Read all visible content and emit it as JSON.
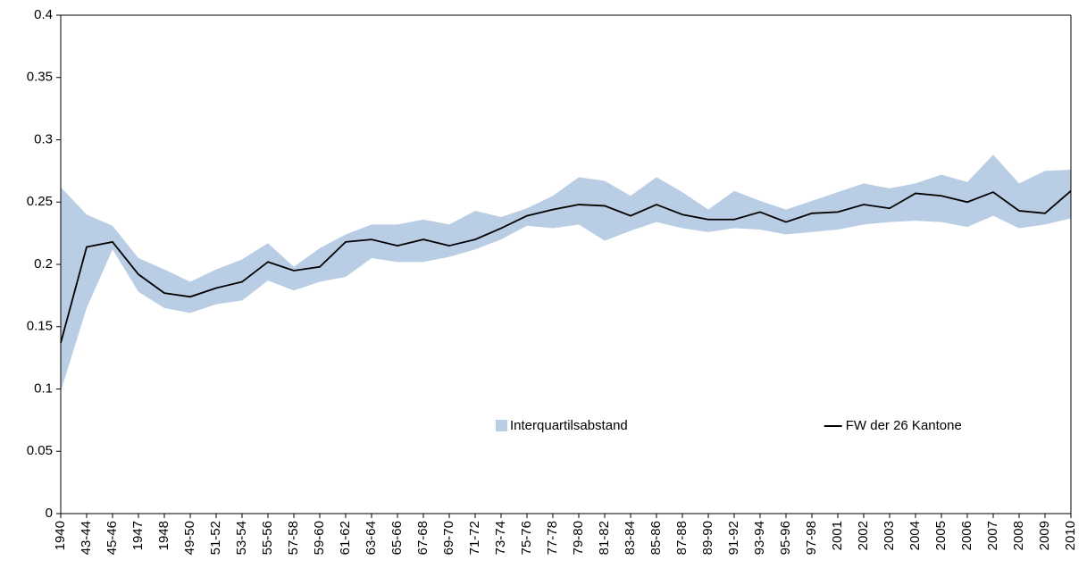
{
  "chart_data": {
    "type": "line",
    "categories": [
      "1940",
      "43-44",
      "45-46",
      "1947",
      "1948",
      "49-50",
      "51-52",
      "53-54",
      "55-56",
      "57-58",
      "59-60",
      "61-62",
      "63-64",
      "65-66",
      "67-68",
      "69-70",
      "71-72",
      "73-74",
      "75-76",
      "77-78",
      "79-80",
      "81-82",
      "83-84",
      "85-86",
      "87-88",
      "89-90",
      "91-92",
      "93-94",
      "95-96",
      "97-98",
      "2001",
      "2002",
      "2003",
      "2004",
      "2005",
      "2006",
      "2007",
      "2008",
      "2009",
      "2010"
    ],
    "series": [
      {
        "name": "Interquartilsabstand",
        "color": "#b9cde5",
        "type": "band",
        "upper": [
          0.262,
          0.24,
          0.231,
          0.205,
          0.196,
          0.186,
          0.196,
          0.204,
          0.217,
          0.198,
          0.213,
          0.224,
          0.232,
          0.232,
          0.236,
          0.232,
          0.243,
          0.238,
          0.245,
          0.255,
          0.27,
          0.267,
          0.255,
          0.27,
          0.258,
          0.244,
          0.259,
          0.251,
          0.244,
          0.251,
          0.258,
          0.265,
          0.261,
          0.265,
          0.272,
          0.266,
          0.288,
          0.265,
          0.275,
          0.276
        ],
        "lower": [
          0.098,
          0.165,
          0.212,
          0.178,
          0.165,
          0.161,
          0.168,
          0.171,
          0.187,
          0.179,
          0.186,
          0.19,
          0.205,
          0.202,
          0.202,
          0.206,
          0.212,
          0.22,
          0.231,
          0.229,
          0.232,
          0.219,
          0.227,
          0.234,
          0.229,
          0.226,
          0.229,
          0.228,
          0.224,
          0.226,
          0.228,
          0.232,
          0.234,
          0.235,
          0.234,
          0.23,
          0.239,
          0.229,
          0.232,
          0.237
        ]
      },
      {
        "name": "FW der 26 Kantone",
        "color": "#000000",
        "type": "line",
        "values": [
          0.137,
          0.214,
          0.218,
          0.192,
          0.177,
          0.174,
          0.181,
          0.186,
          0.202,
          0.195,
          0.198,
          0.218,
          0.22,
          0.215,
          0.22,
          0.215,
          0.22,
          0.229,
          0.239,
          0.244,
          0.248,
          0.247,
          0.239,
          0.248,
          0.24,
          0.236,
          0.236,
          0.242,
          0.234,
          0.241,
          0.242,
          0.248,
          0.245,
          0.257,
          0.255,
          0.25,
          0.258,
          0.243,
          0.241,
          0.259
        ]
      }
    ],
    "ylim": [
      0,
      0.4
    ],
    "yticks": [
      0,
      0.05,
      0.1,
      0.15,
      0.2,
      0.25,
      0.3,
      0.35,
      0.4
    ],
    "grid": false,
    "legend": "center"
  }
}
